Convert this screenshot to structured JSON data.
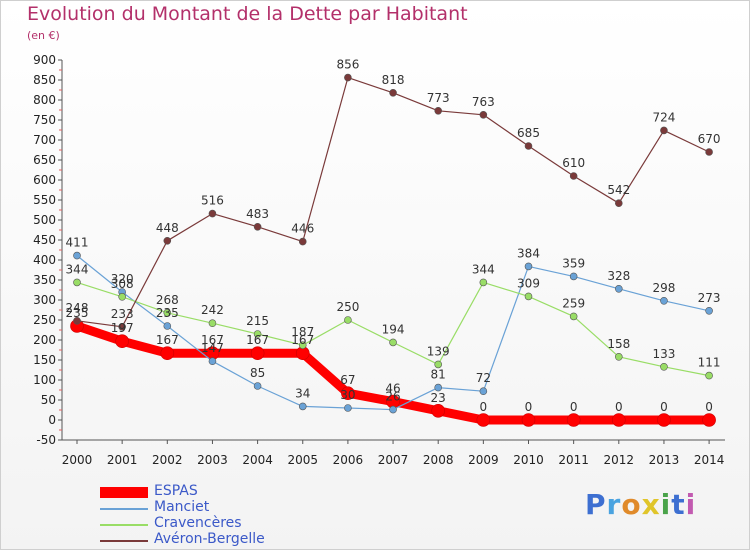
{
  "title": "Evolution du Montant de la Dette par Habitant",
  "subtitle": "(en €)",
  "logo": {
    "text": "Proxiti",
    "colors": [
      "#3d6fd1",
      "#4aa3e0",
      "#e08a2a",
      "#e0c52a",
      "#4aa34a",
      "#3d6fd1",
      "#c25ab0"
    ]
  },
  "chart_data": {
    "type": "line",
    "title": "Evolution du Montant de la Dette par Habitant",
    "xlabel": "",
    "ylabel": "(en €)",
    "ylim": [
      -50,
      900
    ],
    "yticks": [
      -50,
      0,
      50,
      100,
      150,
      200,
      250,
      300,
      350,
      400,
      450,
      500,
      550,
      600,
      650,
      700,
      750,
      800,
      850,
      900
    ],
    "categories": [
      "2000",
      "2001",
      "2002",
      "2003",
      "2004",
      "2005",
      "2006",
      "2007",
      "2008",
      "2009",
      "2010",
      "2011",
      "2012",
      "2013",
      "2014"
    ],
    "grid": false,
    "legend_position": "bottom-left",
    "series": [
      {
        "name": "ESPAS",
        "color": "#ff0000",
        "thick": true,
        "values": [
          235,
          197,
          167,
          167,
          167,
          167,
          67,
          46,
          23,
          0,
          0,
          0,
          0,
          0,
          0
        ],
        "labels": [
          "235",
          "197",
          "167",
          "167",
          "167",
          "167",
          "67",
          "46",
          "23",
          "0",
          "0",
          "0",
          "0",
          "0",
          "0"
        ]
      },
      {
        "name": "Manciet",
        "color": "#6aa2d6",
        "values": [
          411,
          320,
          235,
          147,
          85,
          34,
          30,
          26,
          81,
          72,
          384,
          359,
          328,
          298,
          273
        ],
        "labels": [
          "411",
          "320",
          "235",
          "147",
          "85",
          "34",
          "30",
          "26",
          "81",
          "72",
          "384",
          "359",
          "328",
          "298",
          "273"
        ]
      },
      {
        "name": "Cravencères",
        "color": "#99dd66",
        "values": [
          344,
          308,
          268,
          242,
          215,
          187,
          250,
          194,
          139,
          344,
          309,
          259,
          158,
          133,
          111
        ],
        "labels": [
          "344",
          "308",
          "268",
          "242",
          "215",
          "187",
          "250",
          "194",
          "139",
          "344",
          "309",
          "259",
          "158",
          "133",
          "111"
        ]
      },
      {
        "name": "Avéron-Bergelle",
        "color": "#7a3a3a",
        "values": [
          248,
          233,
          448,
          516,
          483,
          446,
          856,
          818,
          773,
          763,
          685,
          610,
          542,
          724,
          670
        ],
        "labels": [
          "248",
          "233",
          "448",
          "516",
          "483",
          "446",
          "856",
          "818",
          "773",
          "763",
          "685",
          "610",
          "542",
          "724",
          "670"
        ]
      }
    ]
  }
}
